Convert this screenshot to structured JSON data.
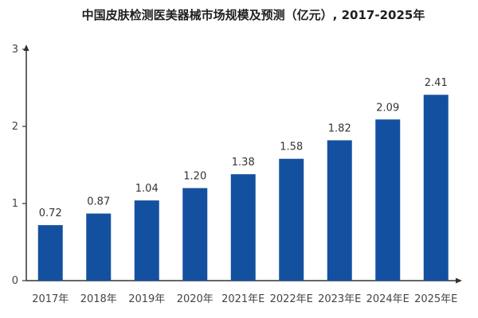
{
  "chart_data": {
    "type": "bar",
    "title": "中国皮肤检测医美器械市场规模及预测（亿元）, 2017-2025年",
    "xlabel": "",
    "ylabel": "",
    "categories": [
      "2017年",
      "2018年",
      "2019年",
      "2020年",
      "2021年E",
      "2022年E",
      "2023年E",
      "2024年E",
      "2025年E"
    ],
    "values": [
      0.72,
      0.87,
      1.04,
      1.2,
      1.38,
      1.58,
      1.82,
      2.09,
      2.41
    ],
    "value_labels": [
      "0.72",
      "0.87",
      "1.04",
      "1.20",
      "1.38",
      "1.58",
      "1.82",
      "2.09",
      "2.41"
    ],
    "ylim": [
      0,
      3
    ],
    "yticks": [
      "0",
      "1",
      "2",
      "3"
    ],
    "bar_color": "#1450A0",
    "axis_color": "#333333",
    "grid": false,
    "legend": "none"
  }
}
